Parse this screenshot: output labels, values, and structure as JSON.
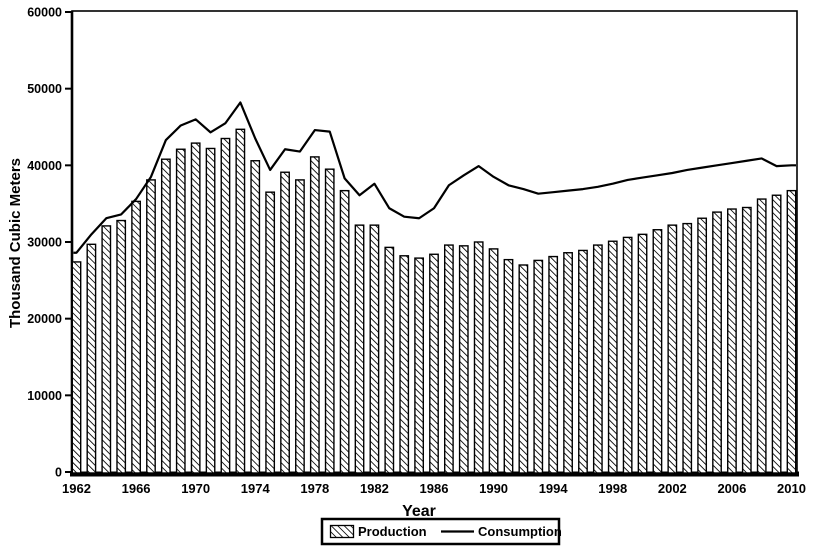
{
  "chart_data": {
    "type": "bar",
    "subtype": "bar-with-line-overlay",
    "title": "",
    "xlabel": "Year",
    "ylabel": "Thousand Cubic Meters",
    "ylim": [
      0,
      60000
    ],
    "y_tick_step": 10000,
    "y_tick_values": [
      0,
      10000,
      20000,
      30000,
      40000,
      50000,
      60000
    ],
    "x_tick_years": [
      1962,
      1966,
      1970,
      1974,
      1978,
      1982,
      1986,
      1990,
      1994,
      1998,
      2002,
      2006,
      2010
    ],
    "grid": "off",
    "legend_position": "bottom",
    "categories": [
      1962,
      1963,
      1964,
      1965,
      1966,
      1967,
      1968,
      1969,
      1970,
      1971,
      1972,
      1973,
      1974,
      1975,
      1976,
      1977,
      1978,
      1979,
      1980,
      1981,
      1982,
      1983,
      1984,
      1985,
      1986,
      1987,
      1988,
      1989,
      1990,
      1991,
      1992,
      1993,
      1994,
      1995,
      1996,
      1997,
      1998,
      1999,
      2000,
      2001,
      2002,
      2003,
      2004,
      2005,
      2006,
      2007,
      2008,
      2009,
      2010
    ],
    "series": [
      {
        "name": "Production",
        "type": "bar",
        "style": "black-hatched",
        "values": [
          27400,
          29700,
          32100,
          32800,
          35300,
          38100,
          40800,
          42100,
          42900,
          42200,
          43500,
          44700,
          40600,
          36500,
          39100,
          38100,
          41100,
          39500,
          36700,
          32200,
          32200,
          29300,
          28200,
          27900,
          28400,
          29600,
          29500,
          30000,
          29100,
          27700,
          27000,
          27600,
          28100,
          28600,
          28900,
          29600,
          30100,
          30600,
          31000,
          31600,
          32200,
          32400,
          33100,
          33900,
          34300,
          34500,
          35600,
          36100,
          36700
        ]
      },
      {
        "name": "Consumption",
        "type": "line",
        "style": "solid-black",
        "values": [
          28600,
          31000,
          33100,
          33600,
          35600,
          38500,
          43300,
          45200,
          46000,
          44300,
          45500,
          48200,
          43500,
          39400,
          42100,
          41800,
          44600,
          44400,
          38300,
          36100,
          37600,
          34400,
          33300,
          33100,
          34400,
          37400,
          38700,
          39900,
          38500,
          37400,
          36900,
          36300,
          36500,
          36700,
          36900,
          37200,
          37600,
          38100,
          38400,
          38700,
          39000,
          39400,
          39700,
          40000,
          40300,
          40600,
          40900,
          39900,
          40000
        ]
      }
    ],
    "colors": {
      "ink": "#000000",
      "background": "#ffffff"
    }
  }
}
